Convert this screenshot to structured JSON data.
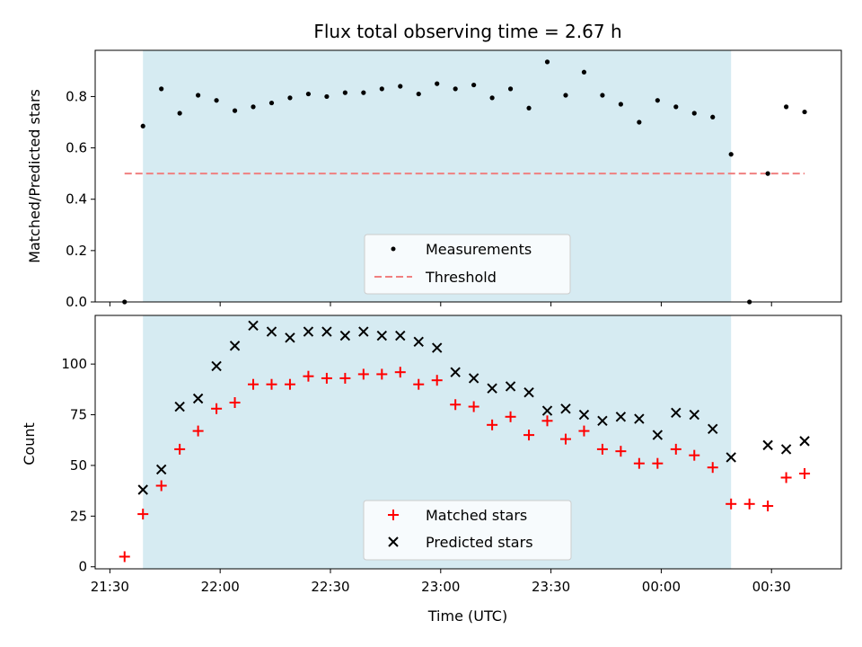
{
  "chart_data": {
    "title": "Flux total observing time = 2.67 h",
    "xlabel": "Time (UTC)",
    "x_tick_labels": [
      "21:30",
      "22:00",
      "22:30",
      "23:00",
      "23:30",
      "00:00",
      "00:30"
    ],
    "x_tick_minutes": [
      1290,
      1320,
      1350,
      1380,
      1410,
      1440,
      1470
    ],
    "xlim_minutes": [
      1286,
      1489
    ],
    "shade_span_minutes": [
      1299,
      1459
    ],
    "shade_color": "#add8e6",
    "top": {
      "type": "scatter",
      "ylabel": "Matched/Predicted stars",
      "ylim": [
        0,
        0.98
      ],
      "y_ticks": [
        0.0,
        0.2,
        0.4,
        0.6,
        0.8
      ],
      "y_tick_labels": [
        "0.0",
        "0.2",
        "0.4",
        "0.6",
        "0.8"
      ],
      "threshold": {
        "value": 0.5,
        "x_range": [
          1294,
          1479
        ],
        "color": "#f08080"
      },
      "series": {
        "name": "Measurements",
        "color": "#000000",
        "x": [
          1294,
          1299,
          1304,
          1309,
          1314,
          1319,
          1324,
          1329,
          1334,
          1339,
          1344,
          1349,
          1354,
          1359,
          1364,
          1369,
          1374,
          1379,
          1384,
          1389,
          1394,
          1399,
          1404,
          1409,
          1414,
          1419,
          1424,
          1429,
          1434,
          1439,
          1444,
          1449,
          1454,
          1459,
          1464,
          1469,
          1474,
          1479
        ],
        "y": [
          0.0,
          0.685,
          0.83,
          0.735,
          0.805,
          0.785,
          0.745,
          0.76,
          0.775,
          0.795,
          0.81,
          0.8,
          0.815,
          0.815,
          0.83,
          0.84,
          0.81,
          0.85,
          0.83,
          0.845,
          0.795,
          0.83,
          0.755,
          0.935,
          0.805,
          0.895,
          0.805,
          0.77,
          0.7,
          0.785,
          0.76,
          0.735,
          0.72,
          0.575,
          0.0,
          0.5,
          0.76,
          0.74
        ]
      },
      "legend": [
        "Measurements",
        "Threshold"
      ]
    },
    "bottom": {
      "type": "scatter",
      "ylabel": "Count",
      "ylim": [
        -1,
        124
      ],
      "y_ticks": [
        0,
        25,
        50,
        75,
        100
      ],
      "y_tick_labels": [
        "0",
        "25",
        "50",
        "75",
        "100"
      ],
      "series": [
        {
          "name": "Matched stars",
          "marker": "plus",
          "color": "#ff0000",
          "x": [
            1294,
            1299,
            1304,
            1309,
            1314,
            1319,
            1324,
            1329,
            1334,
            1339,
            1344,
            1349,
            1354,
            1359,
            1364,
            1369,
            1374,
            1379,
            1384,
            1389,
            1394,
            1399,
            1404,
            1409,
            1414,
            1419,
            1424,
            1429,
            1434,
            1439,
            1444,
            1449,
            1454,
            1459,
            1464,
            1469,
            1474,
            1479
          ],
          "y": [
            5,
            26,
            40,
            58,
            67,
            78,
            81,
            90,
            90,
            90,
            94,
            93,
            93,
            95,
            95,
            96,
            90,
            92,
            80,
            79,
            70,
            74,
            65,
            72,
            63,
            67,
            58,
            57,
            51,
            51,
            58,
            55,
            49,
            31,
            31,
            30,
            44,
            46
          ]
        },
        {
          "name": "Predicted stars",
          "marker": "x",
          "color": "#000000",
          "x": [
            1299,
            1304,
            1309,
            1314,
            1319,
            1324,
            1329,
            1334,
            1339,
            1344,
            1349,
            1354,
            1359,
            1364,
            1369,
            1374,
            1379,
            1384,
            1389,
            1394,
            1399,
            1404,
            1409,
            1414,
            1419,
            1424,
            1429,
            1434,
            1439,
            1444,
            1449,
            1454,
            1459,
            1469,
            1474,
            1479
          ],
          "y": [
            38,
            48,
            79,
            83,
            99,
            109,
            119,
            116,
            113,
            116,
            116,
            114,
            116,
            114,
            114,
            111,
            108,
            96,
            93,
            88,
            89,
            86,
            77,
            78,
            75,
            72,
            74,
            73,
            65,
            76,
            75,
            68,
            54,
            60,
            58,
            62
          ]
        }
      ],
      "legend": [
        "Matched stars",
        "Predicted stars"
      ]
    }
  }
}
